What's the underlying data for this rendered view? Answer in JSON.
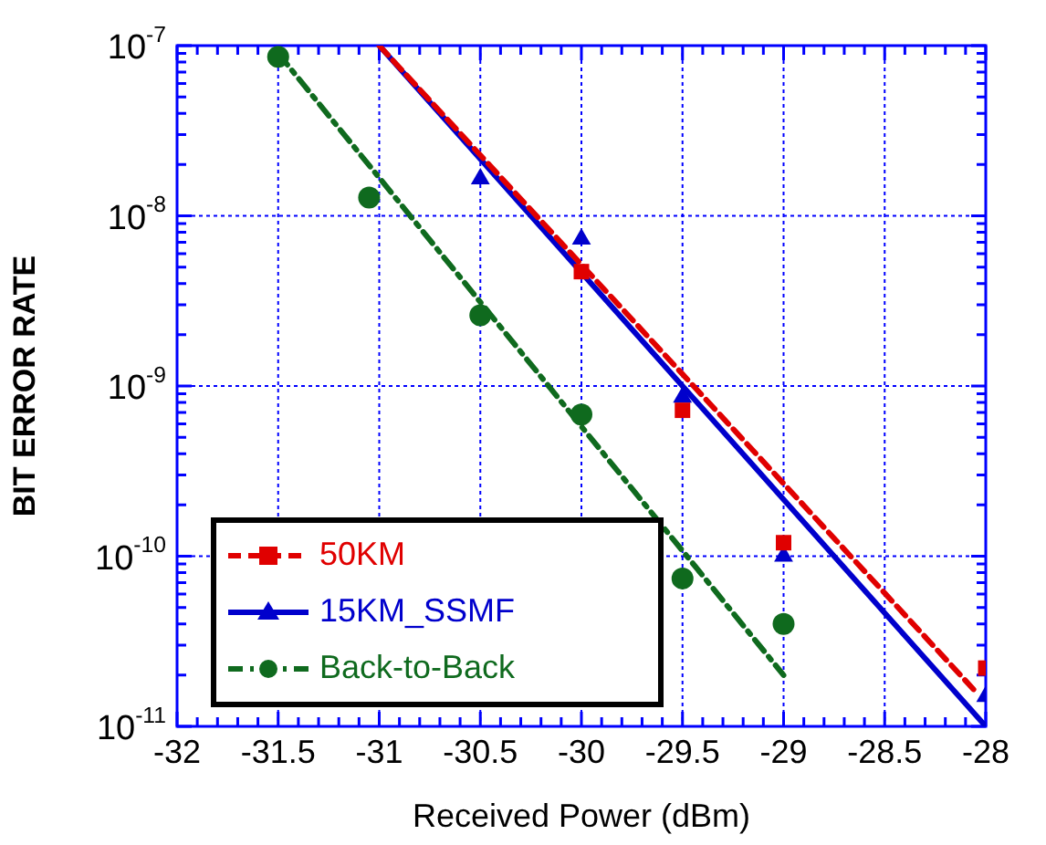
{
  "chart_data": {
    "type": "scatter",
    "xlabel": "Received Power (dBm)",
    "ylabel": "BIT ERROR RATE",
    "xlim": [
      -32,
      -28
    ],
    "xticks": [
      -32,
      -31.5,
      -31,
      -30.5,
      -30,
      -29.5,
      -29,
      -28.5,
      -28
    ],
    "ylim": [
      1e-11,
      1e-07
    ],
    "yticks": [
      {
        "value": 1e-11,
        "label": "10$^{-11}$"
      },
      {
        "value": 1e-10,
        "label": "10$^{-10}$"
      },
      {
        "value": 1e-09,
        "label": "10$^{-9}$"
      },
      {
        "value": 1e-08,
        "label": "10$^{-8}$"
      },
      {
        "value": 1e-07,
        "label": "10$^{-7}$"
      }
    ],
    "log": "y",
    "grid": true,
    "legend": "bottom left",
    "series": [
      {
        "name": "50KM",
        "marker": "square",
        "color": "#e00000",
        "x": [
          -30,
          -29.5,
          -29,
          -28
        ],
        "values": [
          4.7e-09,
          7.2e-10,
          1.2e-10,
          2.2e-11
        ]
      },
      {
        "name": "15KM_SSMF",
        "marker": "triangle",
        "color": "#0000cc",
        "x": [
          -30.5,
          -30,
          -29.5,
          -29,
          -28
        ],
        "values": [
          1.65e-08,
          7.3e-09,
          8.6e-10,
          1e-10,
          1.5e-11
        ]
      },
      {
        "name": "Back-to-Back",
        "marker": "circle",
        "color": "#0f6a1e",
        "x": [
          -31.5,
          -31.05,
          -30.5,
          -30,
          -29.5,
          -29
        ],
        "values": [
          8.6e-08,
          1.28e-08,
          2.6e-09,
          6.8e-10,
          7.4e-11,
          4e-11
        ]
      },
      {
        "type": "line",
        "line_style": "dashed",
        "marker": "none",
        "color": "#e00000",
        "x": [
          -31,
          -28.05
        ],
        "values": [
          1e-07,
          1.6e-11
        ]
      },
      {
        "type": "line",
        "line_style": "solid",
        "marker": "none",
        "color": "#0000cc",
        "x": [
          -31,
          -28
        ],
        "values": [
          1e-07,
          1e-11
        ]
      },
      {
        "type": "line",
        "line_style": "dashdot",
        "marker": "none",
        "color": "#0f6a1e",
        "x": [
          -31.5,
          -29
        ],
        "values": [
          9e-08,
          2e-11
        ]
      }
    ]
  }
}
